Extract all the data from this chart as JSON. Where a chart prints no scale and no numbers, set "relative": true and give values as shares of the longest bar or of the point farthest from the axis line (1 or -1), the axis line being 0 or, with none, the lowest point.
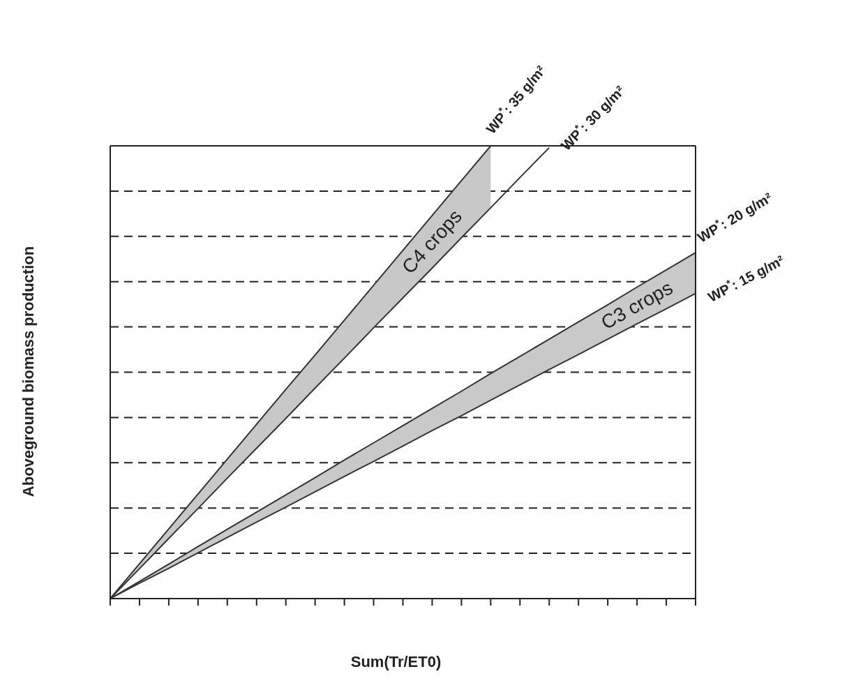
{
  "chart_data": {
    "type": "line",
    "relative": true,
    "xlabel": "Sum(Tr/ET0)",
    "ylabel": "Aboveground biomass production",
    "grid": "y",
    "line_style": "solid",
    "categories": [
      null,
      null,
      null,
      null,
      null,
      null,
      null,
      null,
      null,
      null,
      null,
      null,
      null,
      null,
      null,
      null,
      null,
      null,
      null,
      null,
      null
    ],
    "annotations": [
      "C4 crops",
      "C3 crops"
    ],
    "series": [
      {
        "name": "WP$^{*}$: 35 g/m²",
        "color": "#333333",
        "values": [
          0,
          0.077,
          0.154,
          0.231,
          0.308,
          0.385,
          0.462,
          0.538,
          0.615,
          0.692,
          0.769,
          0.846,
          0.923,
          1,
          null,
          null,
          null,
          null,
          null,
          null,
          null
        ],
        "lower": [
          0,
          0.066,
          0.133,
          0.199,
          0.266,
          0.332,
          0.398,
          0.465,
          0.531,
          0.598,
          0.664,
          0.73,
          0.797,
          0.863,
          null,
          null,
          null,
          null,
          null,
          null,
          null
        ],
        "upper": [
          0,
          0.077,
          0.154,
          0.231,
          0.308,
          0.385,
          0.462,
          0.538,
          0.615,
          0.692,
          0.769,
          0.846,
          0.923,
          1,
          null,
          null,
          null,
          null,
          null,
          null,
          null
        ]
      },
      {
        "name": "WP$^{*}$: 30 g/m²",
        "color": "#333333",
        "values": [
          0,
          0.066,
          0.133,
          0.199,
          0.266,
          0.332,
          0.398,
          0.465,
          0.531,
          0.598,
          0.664,
          0.73,
          0.797,
          0.863,
          0.93,
          0.996,
          null,
          null,
          null,
          null,
          null
        ]
      },
      {
        "name": "WP$^{*}$: 20 g/m²",
        "color": "#333333",
        "values": [
          0,
          0.038,
          0.076,
          0.115,
          0.153,
          0.191,
          0.229,
          0.267,
          0.306,
          0.344,
          0.382,
          0.42,
          0.458,
          0.497,
          0.535,
          0.573,
          0.611,
          0.649,
          0.688,
          0.726,
          0.764
        ],
        "lower": [
          0,
          0.034,
          0.067,
          0.101,
          0.135,
          0.169,
          0.202,
          0.236,
          0.27,
          0.303,
          0.337,
          0.371,
          0.404,
          0.438,
          0.472,
          0.506,
          0.539,
          0.573,
          0.607,
          0.64,
          0.674
        ],
        "upper": [
          0,
          0.038,
          0.076,
          0.115,
          0.153,
          0.191,
          0.229,
          0.267,
          0.306,
          0.344,
          0.382,
          0.42,
          0.458,
          0.497,
          0.535,
          0.573,
          0.611,
          0.649,
          0.688,
          0.726,
          0.764
        ]
      },
      {
        "name": "WP$^{*}$: 15 g/m²",
        "color": "#333333",
        "values": [
          0,
          0.034,
          0.067,
          0.101,
          0.135,
          0.169,
          0.202,
          0.236,
          0.27,
          0.303,
          0.337,
          0.371,
          0.404,
          0.438,
          0.472,
          0.506,
          0.539,
          0.573,
          0.607,
          0.64,
          0.674
        ]
      }
    ]
  }
}
